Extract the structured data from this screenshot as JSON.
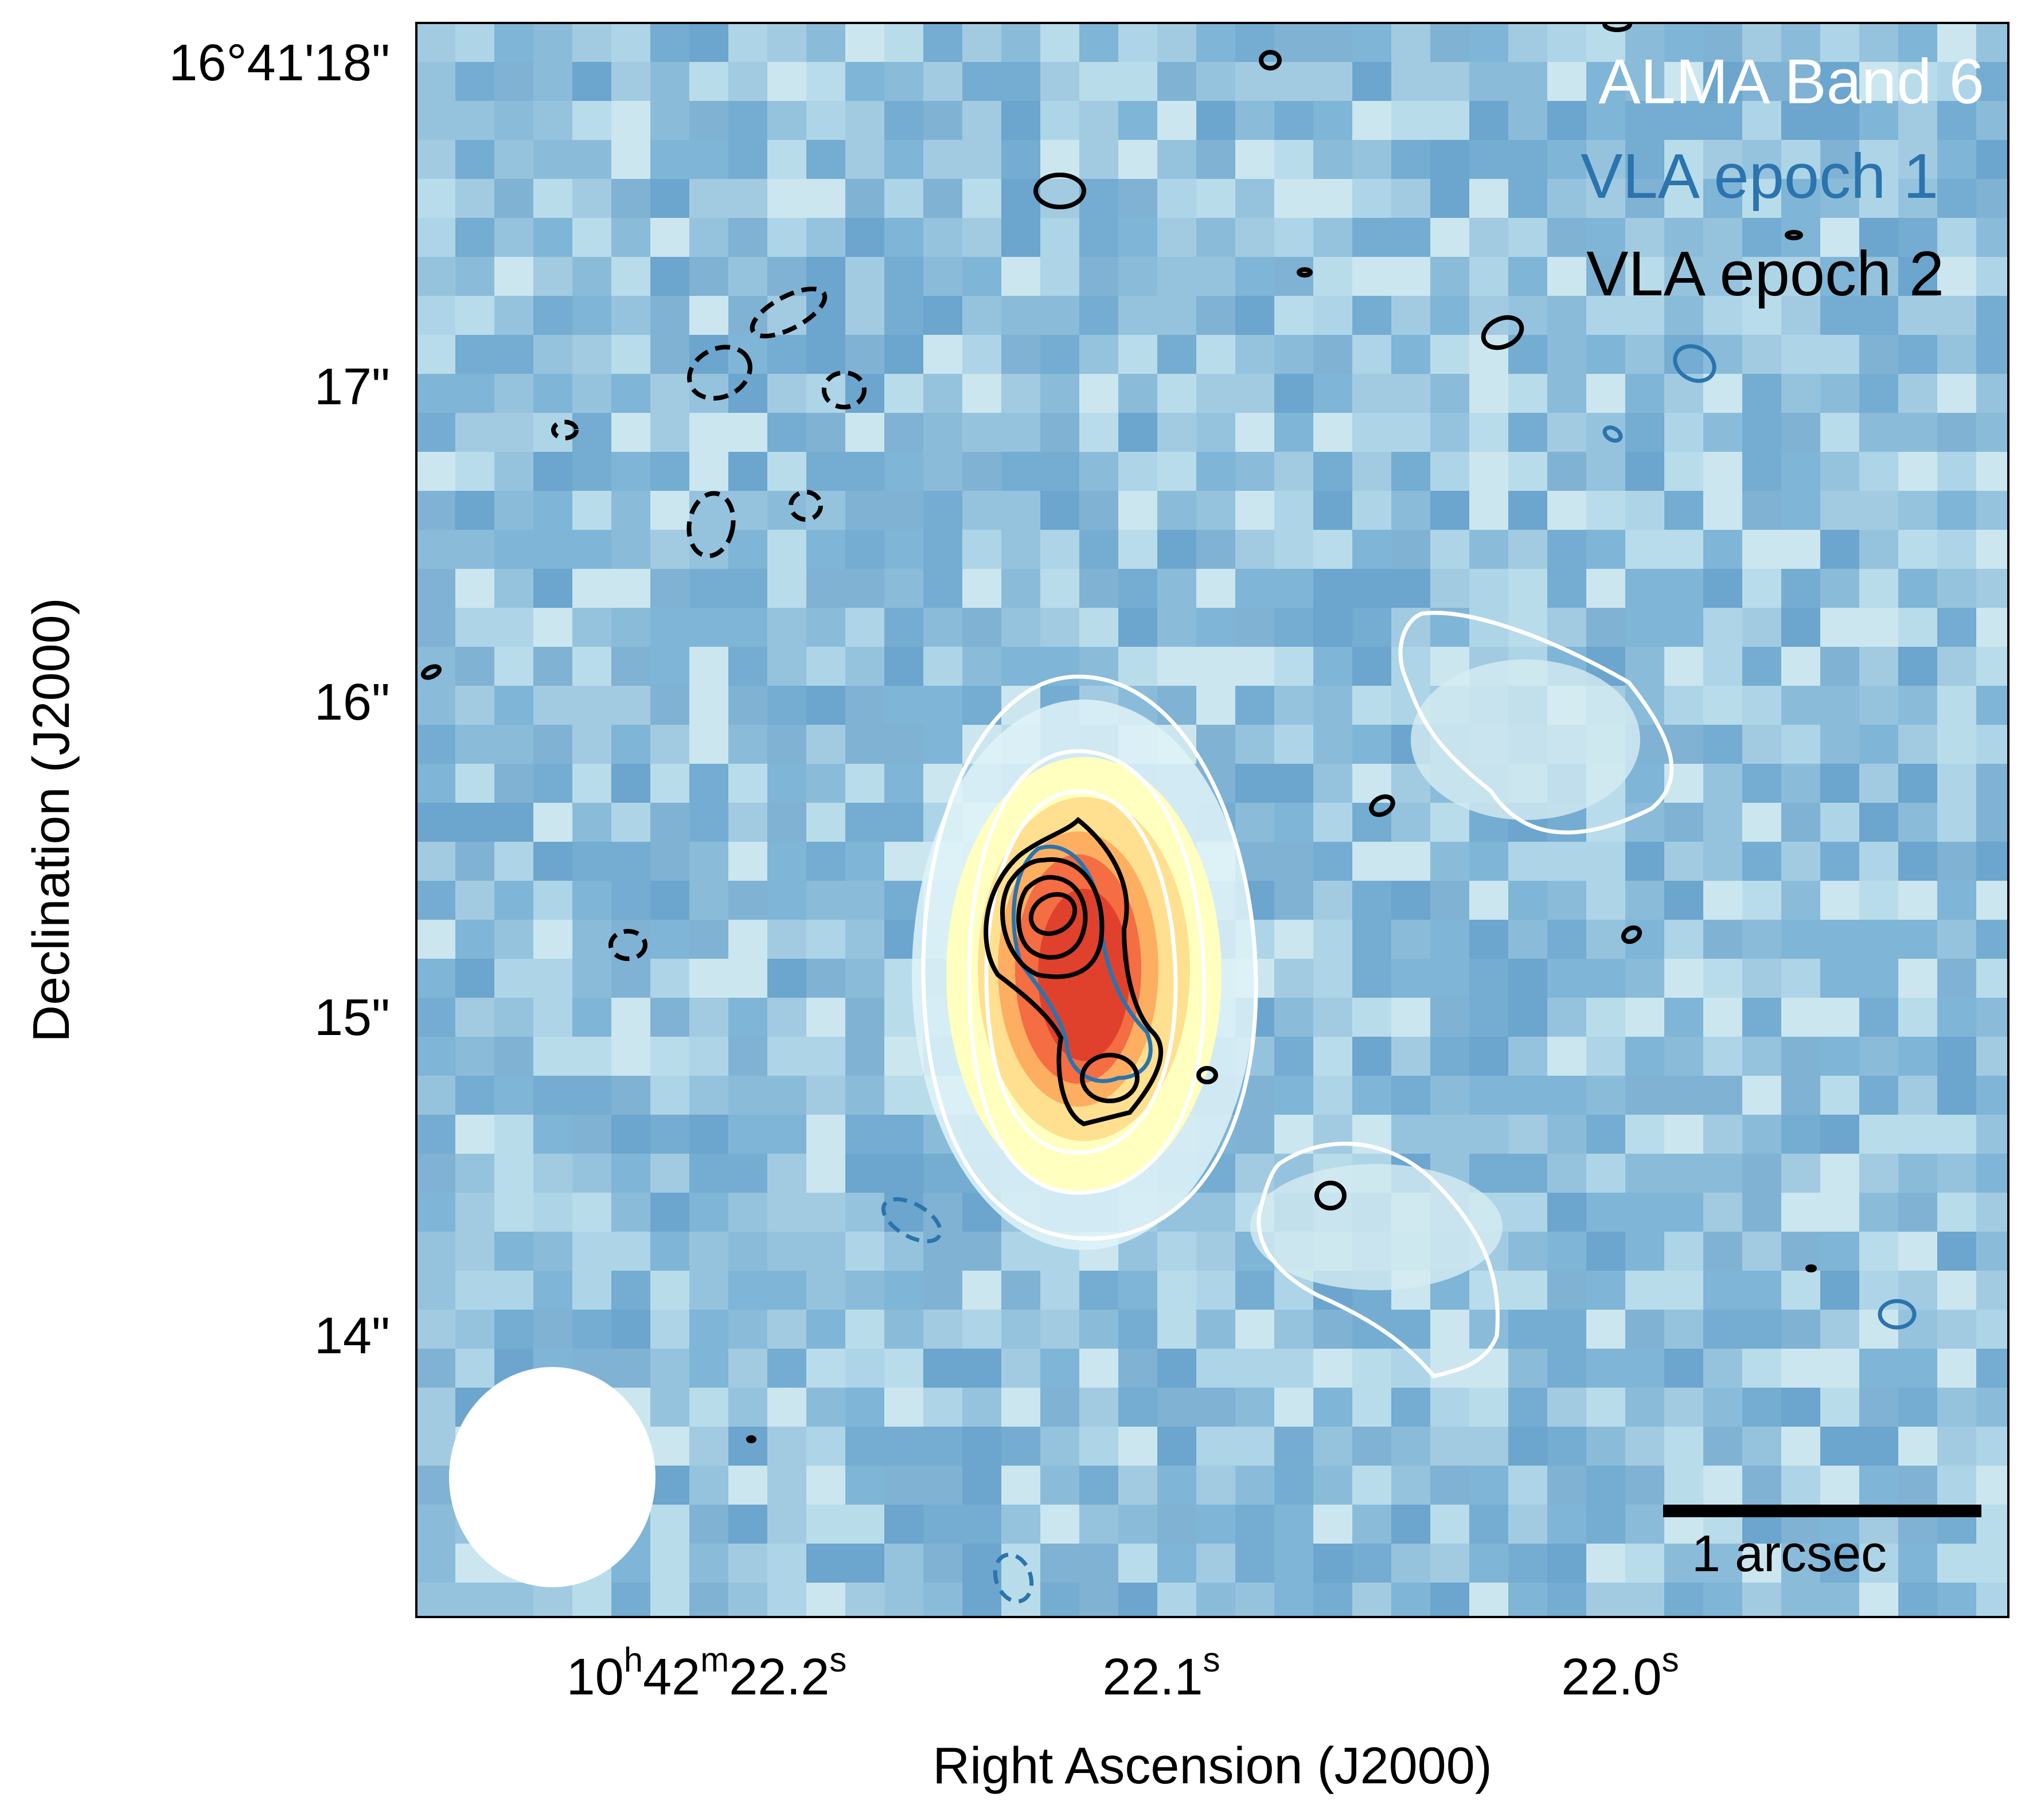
{
  "axes": {
    "xlabel": "Right Ascension (J2000)",
    "ylabel": "Declination (J2000)",
    "x_ticks": [
      {
        "main": "10",
        "sup1": "h",
        "mid": "42",
        "sup2": "m",
        "main2": "22.2",
        "sup3": "s"
      },
      {
        "main": "22.1",
        "sup": "s"
      },
      {
        "main": "22.0",
        "sup": "s"
      }
    ],
    "y_ticks": [
      "16°41'18\"",
      "17\"",
      "16\"",
      "15\"",
      "14\""
    ]
  },
  "legend": [
    {
      "label": "ALMA Band 6",
      "color": "#ffffff"
    },
    {
      "label": "VLA epoch 1",
      "color": "#2b74ad"
    },
    {
      "label": "VLA epoch 2",
      "color": "#000000"
    }
  ],
  "scalebar": {
    "label": "1 arcsec"
  },
  "colors": {
    "background_map": "#8fbbd8",
    "peak": "#e0412d",
    "alma_contour": "#ffffff",
    "vla1_contour": "#2b74ad",
    "vla2_contour": "#000000"
  }
}
